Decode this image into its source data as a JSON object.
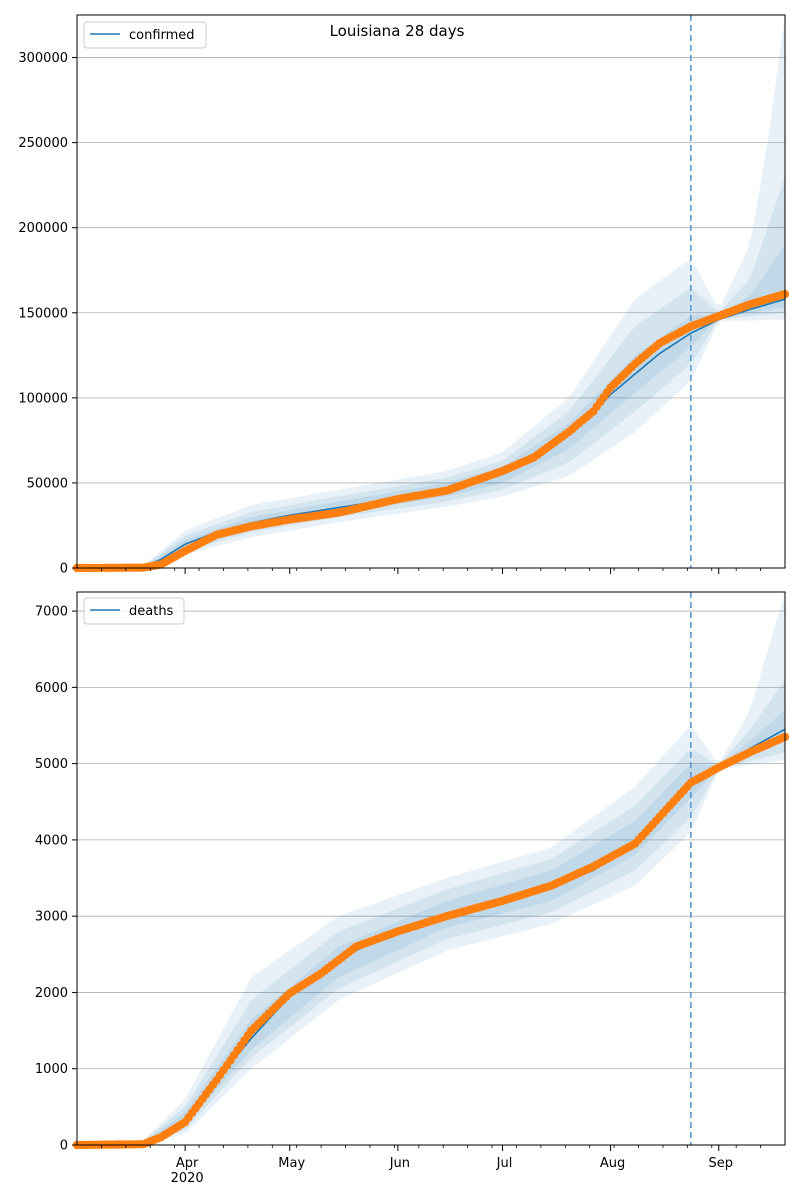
{
  "title": "Louisiana 28 days",
  "chart_data": [
    {
      "type": "line",
      "legend": "confirmed",
      "legend_position": "top-left",
      "grid": "horizontal",
      "ylim": [
        0,
        325000
      ],
      "yticks": [
        0,
        50000,
        100000,
        150000,
        200000,
        250000,
        300000
      ],
      "xlim": [
        "2020-03-01",
        "2020-09-20"
      ],
      "forecast_start": "2020-08-24",
      "model_points": [
        [
          "2020-03-01",
          0
        ],
        [
          "2020-03-20",
          300
        ],
        [
          "2020-03-25",
          5000
        ],
        [
          "2020-04-01",
          14000
        ],
        [
          "2020-04-10",
          21000
        ],
        [
          "2020-04-20",
          26500
        ],
        [
          "2020-05-01",
          31000
        ],
        [
          "2020-05-15",
          35500
        ],
        [
          "2020-06-01",
          41000
        ],
        [
          "2020-06-15",
          46000
        ],
        [
          "2020-07-01",
          55000
        ],
        [
          "2020-07-10",
          64000
        ],
        [
          "2020-07-20",
          78000
        ],
        [
          "2020-07-27",
          91000
        ],
        [
          "2020-08-01",
          102000
        ],
        [
          "2020-08-08",
          114000
        ],
        [
          "2020-08-15",
          126000
        ],
        [
          "2020-08-24",
          138000
        ],
        [
          "2020-09-01",
          146000
        ],
        [
          "2020-09-10",
          152000
        ],
        [
          "2020-09-20",
          158000
        ]
      ],
      "observed_points": [
        [
          "2020-03-01",
          0
        ],
        [
          "2020-03-20",
          200
        ],
        [
          "2020-03-25",
          2000
        ],
        [
          "2020-04-01",
          10000
        ],
        [
          "2020-04-10",
          19500
        ],
        [
          "2020-04-20",
          24500
        ],
        [
          "2020-05-01",
          28500
        ],
        [
          "2020-05-15",
          32500
        ],
        [
          "2020-06-01",
          40500
        ],
        [
          "2020-06-15",
          45500
        ],
        [
          "2020-07-01",
          57000
        ],
        [
          "2020-07-10",
          65000
        ],
        [
          "2020-07-20",
          80000
        ],
        [
          "2020-07-27",
          92000
        ],
        [
          "2020-08-01",
          106000
        ],
        [
          "2020-08-08",
          120000
        ],
        [
          "2020-08-15",
          132000
        ],
        [
          "2020-08-24",
          142000
        ],
        [
          "2020-09-01",
          148000
        ],
        [
          "2020-09-10",
          155000
        ],
        [
          "2020-09-20",
          161000
        ]
      ],
      "bands": [
        {
          "lower": [
            [
              "2020-03-20",
              0
            ],
            [
              "2020-04-01",
              8000
            ],
            [
              "2020-04-20",
              18000
            ],
            [
              "2020-05-15",
              27000
            ],
            [
              "2020-06-15",
              36000
            ],
            [
              "2020-07-01",
              42000
            ],
            [
              "2020-07-20",
              54000
            ],
            [
              "2020-08-08",
              80000
            ],
            [
              "2020-08-24",
              110000
            ],
            [
              "2020-09-01",
              145000
            ],
            [
              "2020-09-20",
              146000
            ]
          ],
          "upper": [
            [
              "2020-03-20",
              1500
            ],
            [
              "2020-04-01",
              22000
            ],
            [
              "2020-04-20",
              37000
            ],
            [
              "2020-05-15",
              46000
            ],
            [
              "2020-06-15",
              57000
            ],
            [
              "2020-07-01",
              68000
            ],
            [
              "2020-07-20",
              100000
            ],
            [
              "2020-08-08",
              158000
            ],
            [
              "2020-08-24",
              182000
            ],
            [
              "2020-09-01",
              152000
            ],
            [
              "2020-09-10",
              190000
            ],
            [
              "2020-09-15",
              250000
            ],
            [
              "2020-09-20",
              325000
            ]
          ]
        },
        {
          "lower": [
            [
              "2020-03-20",
              0
            ],
            [
              "2020-04-01",
              10000
            ],
            [
              "2020-04-20",
              21000
            ],
            [
              "2020-05-15",
              30000
            ],
            [
              "2020-06-15",
              39000
            ],
            [
              "2020-07-01",
              46000
            ],
            [
              "2020-07-20",
              62000
            ],
            [
              "2020-08-08",
              92000
            ],
            [
              "2020-08-24",
              120000
            ],
            [
              "2020-09-01",
              146000
            ],
            [
              "2020-09-20",
              150000
            ]
          ],
          "upper": [
            [
              "2020-03-20",
              1000
            ],
            [
              "2020-04-01",
              19000
            ],
            [
              "2020-04-20",
              33000
            ],
            [
              "2020-05-15",
              42000
            ],
            [
              "2020-06-15",
              53000
            ],
            [
              "2020-07-01",
              63000
            ],
            [
              "2020-07-20",
              92000
            ],
            [
              "2020-08-08",
              142000
            ],
            [
              "2020-08-24",
              165000
            ],
            [
              "2020-09-01",
              150000
            ],
            [
              "2020-09-10",
              170000
            ],
            [
              "2020-09-20",
              230000
            ]
          ]
        },
        {
          "lower": [
            [
              "2020-03-20",
              100
            ],
            [
              "2020-04-01",
              12000
            ],
            [
              "2020-04-20",
              23500
            ],
            [
              "2020-05-15",
              32500
            ],
            [
              "2020-06-15",
              42000
            ],
            [
              "2020-07-01",
              50000
            ],
            [
              "2020-07-20",
              70000
            ],
            [
              "2020-08-08",
              103000
            ],
            [
              "2020-08-24",
              130000
            ],
            [
              "2020-09-01",
              147000
            ],
            [
              "2020-09-20",
              153000
            ]
          ],
          "upper": [
            [
              "2020-03-20",
              600
            ],
            [
              "2020-04-01",
              16500
            ],
            [
              "2020-04-20",
              30000
            ],
            [
              "2020-05-15",
              39000
            ],
            [
              "2020-06-15",
              50000
            ],
            [
              "2020-07-01",
              59500
            ],
            [
              "2020-07-20",
              85000
            ],
            [
              "2020-08-08",
              125000
            ],
            [
              "2020-08-24",
              148000
            ],
            [
              "2020-09-01",
              149000
            ],
            [
              "2020-09-10",
              160000
            ],
            [
              "2020-09-20",
              190000
            ]
          ]
        }
      ]
    },
    {
      "type": "line",
      "legend": "deaths",
      "legend_position": "top-left",
      "grid": "horizontal",
      "ylim": [
        0,
        7250
      ],
      "yticks": [
        0,
        1000,
        2000,
        3000,
        4000,
        5000,
        6000,
        7000
      ],
      "xlim": [
        "2020-03-01",
        "2020-09-20"
      ],
      "forecast_start": "2020-08-24",
      "xticks": [
        {
          "date": "2020-04-01",
          "label": "Apr",
          "sublabel": "2020"
        },
        {
          "date": "2020-05-01",
          "label": "May"
        },
        {
          "date": "2020-06-01",
          "label": "Jun"
        },
        {
          "date": "2020-07-01",
          "label": "Jul"
        },
        {
          "date": "2020-08-01",
          "label": "Aug"
        },
        {
          "date": "2020-09-01",
          "label": "Sep"
        }
      ],
      "model_points": [
        [
          "2020-03-01",
          0
        ],
        [
          "2020-03-20",
          20
        ],
        [
          "2020-03-25",
          120
        ],
        [
          "2020-04-01",
          350
        ],
        [
          "2020-04-10",
          850
        ],
        [
          "2020-04-20",
          1400
        ],
        [
          "2020-05-01",
          1950
        ],
        [
          "2020-05-10",
          2250
        ],
        [
          "2020-05-20",
          2550
        ],
        [
          "2020-06-01",
          2800
        ],
        [
          "2020-06-15",
          3000
        ],
        [
          "2020-07-01",
          3200
        ],
        [
          "2020-07-15",
          3400
        ],
        [
          "2020-07-27",
          3600
        ],
        [
          "2020-08-08",
          4000
        ],
        [
          "2020-08-24",
          4780
        ],
        [
          "2020-09-01",
          4950
        ],
        [
          "2020-09-10",
          5200
        ],
        [
          "2020-09-20",
          5450
        ]
      ],
      "observed_points": [
        [
          "2020-03-01",
          0
        ],
        [
          "2020-03-20",
          10
        ],
        [
          "2020-03-25",
          100
        ],
        [
          "2020-04-01",
          300
        ],
        [
          "2020-04-10",
          850
        ],
        [
          "2020-04-20",
          1500
        ],
        [
          "2020-05-01",
          1990
        ],
        [
          "2020-05-10",
          2250
        ],
        [
          "2020-05-20",
          2600
        ],
        [
          "2020-06-01",
          2800
        ],
        [
          "2020-06-15",
          3000
        ],
        [
          "2020-07-01",
          3200
        ],
        [
          "2020-07-15",
          3400
        ],
        [
          "2020-07-27",
          3650
        ],
        [
          "2020-08-08",
          3950
        ],
        [
          "2020-08-15",
          4300
        ],
        [
          "2020-08-24",
          4750
        ],
        [
          "2020-09-01",
          4950
        ],
        [
          "2020-09-10",
          5150
        ],
        [
          "2020-09-20",
          5350
        ]
      ],
      "bands": [
        {
          "lower": [
            [
              "2020-03-20",
              0
            ],
            [
              "2020-04-01",
              150
            ],
            [
              "2020-04-20",
              1000
            ],
            [
              "2020-05-15",
              1900
            ],
            [
              "2020-06-15",
              2550
            ],
            [
              "2020-07-15",
              2900
            ],
            [
              "2020-08-08",
              3400
            ],
            [
              "2020-08-24",
              4100
            ],
            [
              "2020-09-01",
              4920
            ],
            [
              "2020-09-20",
              5050
            ]
          ],
          "upper": [
            [
              "2020-03-20",
              60
            ],
            [
              "2020-04-01",
              600
            ],
            [
              "2020-04-20",
              2200
            ],
            [
              "2020-05-15",
              3000
            ],
            [
              "2020-06-15",
              3500
            ],
            [
              "2020-07-15",
              3900
            ],
            [
              "2020-08-08",
              4700
            ],
            [
              "2020-08-24",
              5500
            ],
            [
              "2020-09-01",
              4990
            ],
            [
              "2020-09-10",
              5700
            ],
            [
              "2020-09-20",
              7250
            ]
          ]
        },
        {
          "lower": [
            [
              "2020-03-20",
              0
            ],
            [
              "2020-04-01",
              200
            ],
            [
              "2020-04-20",
              1150
            ],
            [
              "2020-05-15",
              2050
            ],
            [
              "2020-06-15",
              2700
            ],
            [
              "2020-07-15",
              3050
            ],
            [
              "2020-08-08",
              3600
            ],
            [
              "2020-08-24",
              4300
            ],
            [
              "2020-09-01",
              4930
            ],
            [
              "2020-09-20",
              5150
            ]
          ],
          "upper": [
            [
              "2020-03-20",
              50
            ],
            [
              "2020-04-01",
              500
            ],
            [
              "2020-04-20",
              1900
            ],
            [
              "2020-05-15",
              2800
            ],
            [
              "2020-06-15",
              3350
            ],
            [
              "2020-07-15",
              3750
            ],
            [
              "2020-08-08",
              4450
            ],
            [
              "2020-08-24",
              5200
            ],
            [
              "2020-09-01",
              4980
            ],
            [
              "2020-09-10",
              5450
            ],
            [
              "2020-09-20",
              6100
            ]
          ]
        },
        {
          "lower": [
            [
              "2020-03-20",
              5
            ],
            [
              "2020-04-01",
              250
            ],
            [
              "2020-04-20",
              1250
            ],
            [
              "2020-05-15",
              2200
            ],
            [
              "2020-06-15",
              2850
            ],
            [
              "2020-07-15",
              3200
            ],
            [
              "2020-08-08",
              3800
            ],
            [
              "2020-08-24",
              4550
            ],
            [
              "2020-09-01",
              4940
            ],
            [
              "2020-09-20",
              5300
            ]
          ],
          "upper": [
            [
              "2020-03-20",
              35
            ],
            [
              "2020-04-01",
              430
            ],
            [
              "2020-04-20",
              1650
            ],
            [
              "2020-05-15",
              2600
            ],
            [
              "2020-06-15",
              3200
            ],
            [
              "2020-07-15",
              3600
            ],
            [
              "2020-08-08",
              4250
            ],
            [
              "2020-08-24",
              5000
            ],
            [
              "2020-09-01",
              4970
            ],
            [
              "2020-09-10",
              5300
            ],
            [
              "2020-09-20",
              5700
            ]
          ]
        }
      ]
    }
  ],
  "colors": {
    "model_line": "#1f77b4",
    "observed_markers": "#ff7f0e",
    "band_fill": "#1f77b4",
    "forecast_marker": "#5a9bd4",
    "grid": "#b0b0b0"
  }
}
